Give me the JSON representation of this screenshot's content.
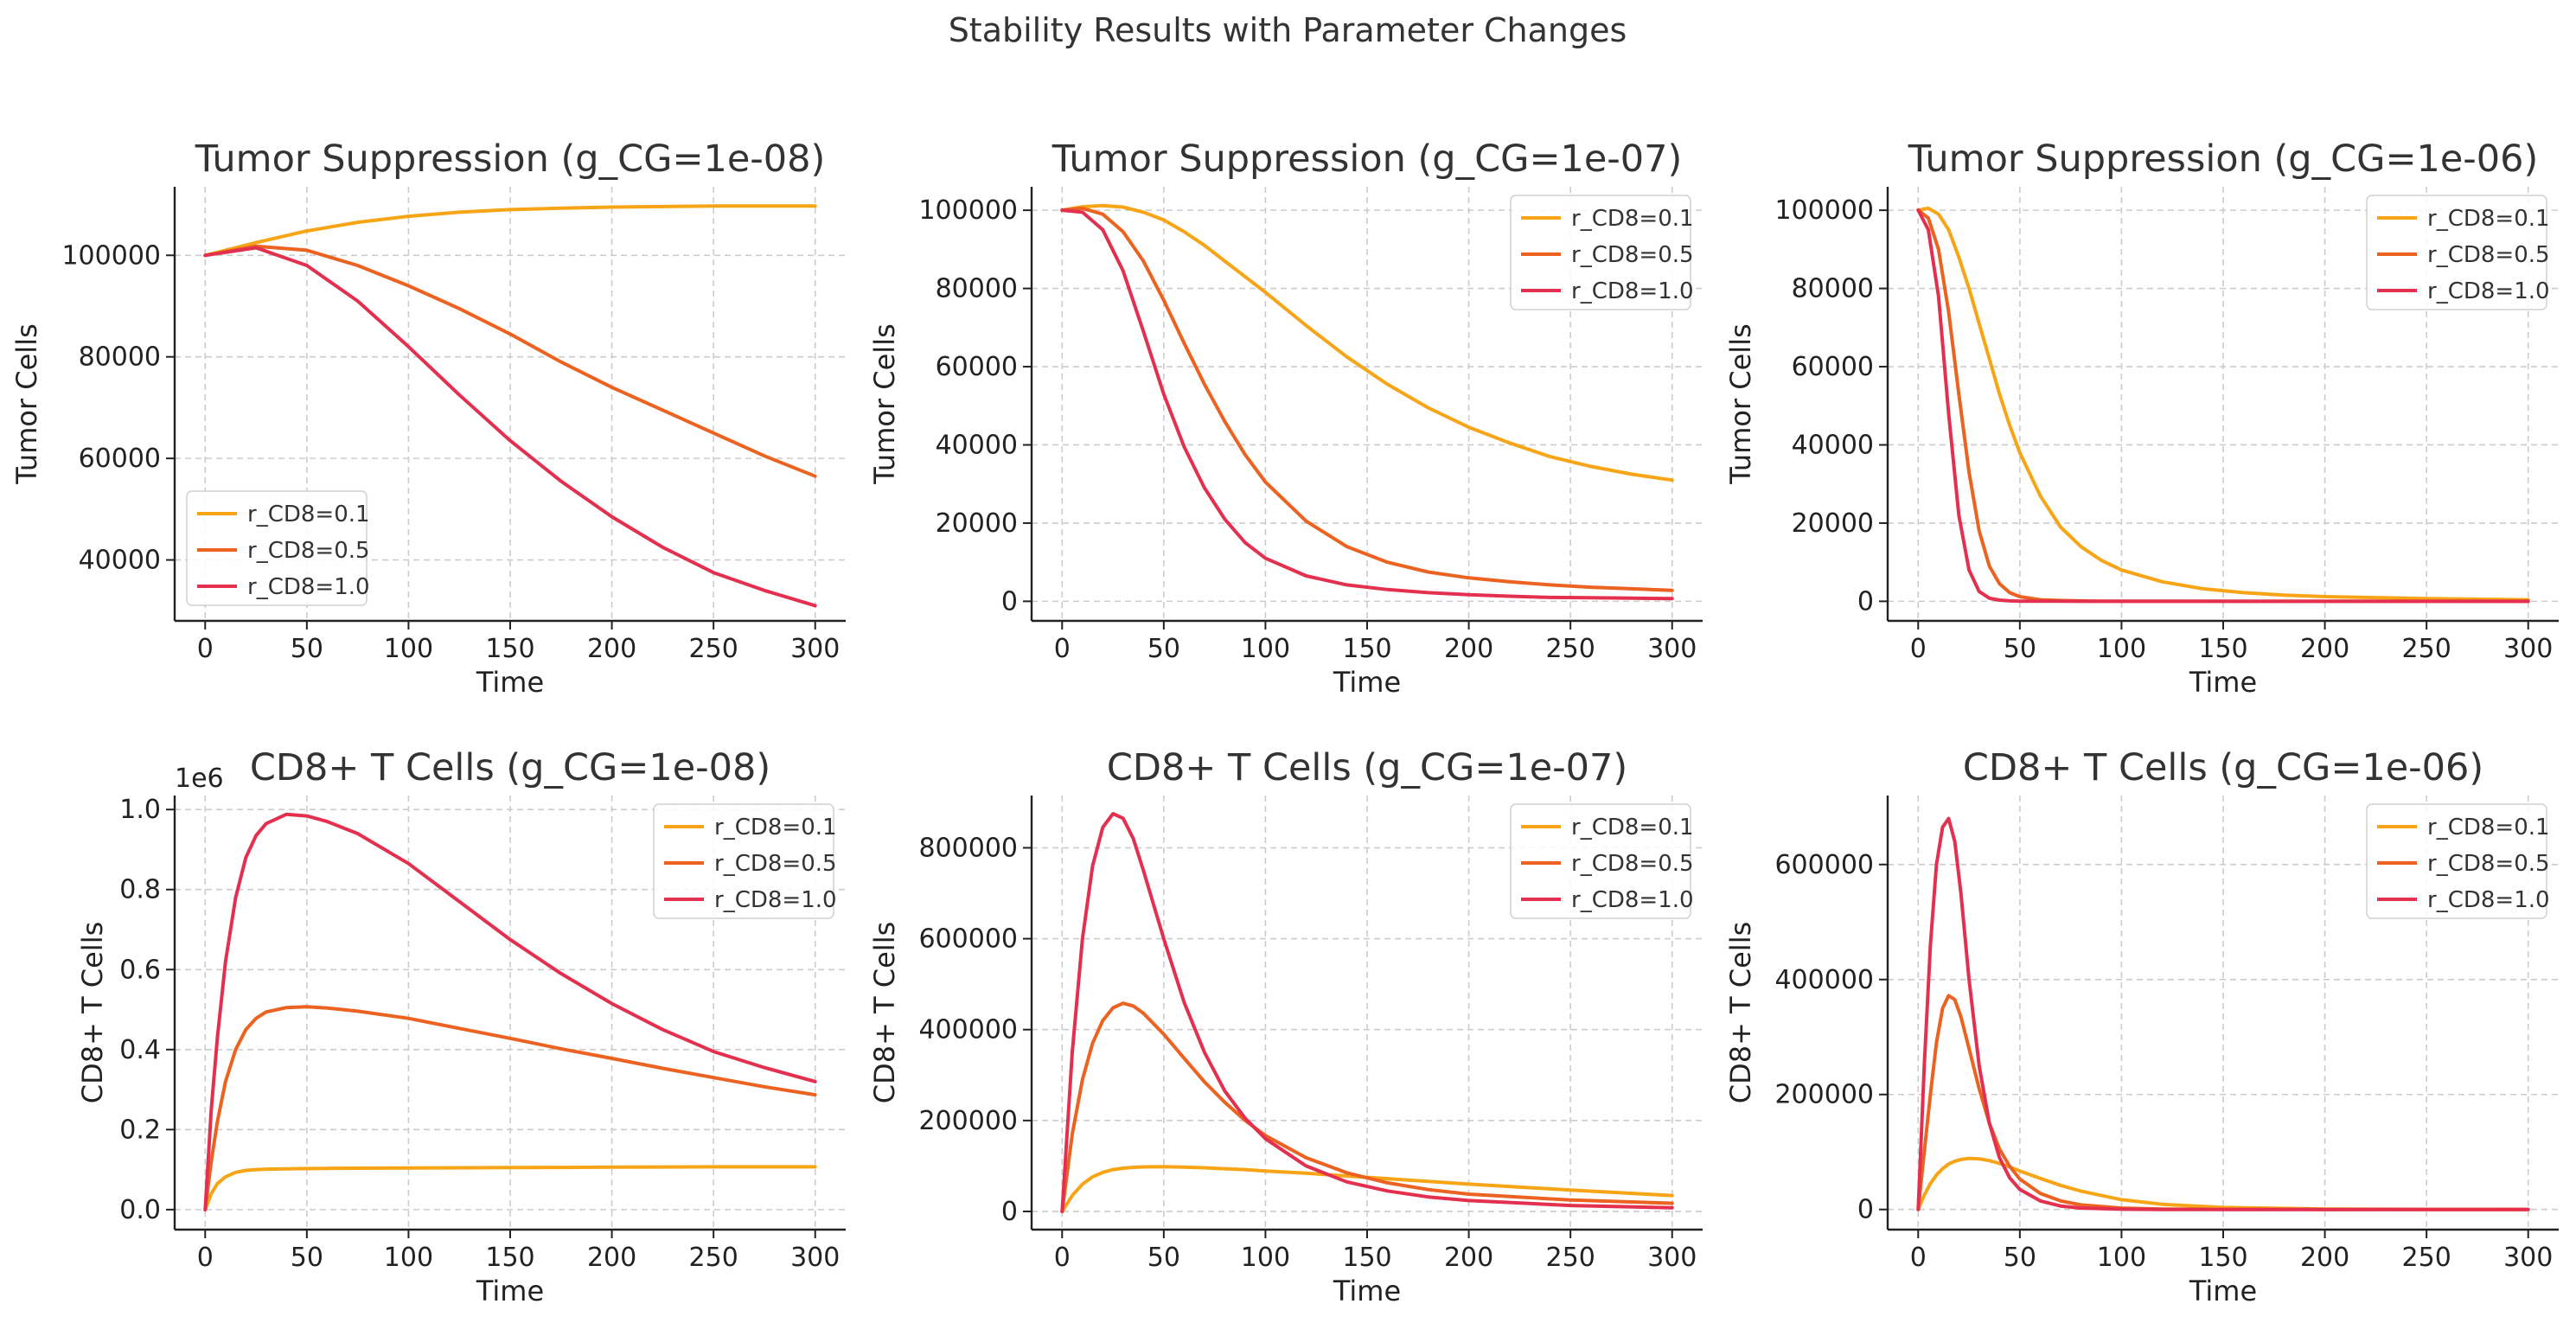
{
  "figure_title": "Stability Results with Parameter Changes",
  "colors": {
    "r_CD8=0.1": "#f7a516",
    "r_CD8=0.5": "#eb6221",
    "r_CD8=1.0": "#e4304f"
  },
  "chart_data": [
    {
      "type": "line",
      "title": "Tumor Suppression (g_CG=1e-08)",
      "xlabel": "Time",
      "ylabel": "Tumor Cells",
      "xlim": [
        -15,
        315
      ],
      "ylim": [
        28000,
        113500
      ],
      "xticks": [
        0,
        50,
        100,
        150,
        200,
        250,
        300
      ],
      "yticks": [
        40000,
        60000,
        80000,
        100000
      ],
      "ytick_labels": [
        "40000",
        "60000",
        "80000",
        "100000"
      ],
      "offset_label": "",
      "legend": "lower-left",
      "grid": true,
      "x": [
        0,
        25,
        50,
        75,
        100,
        125,
        150,
        175,
        200,
        225,
        250,
        275,
        300
      ],
      "series": [
        {
          "name": "r_CD8=0.1",
          "values": [
            100000,
            102500,
            104800,
            106500,
            107700,
            108500,
            109000,
            109300,
            109500,
            109600,
            109700,
            109700,
            109700
          ]
        },
        {
          "name": "r_CD8=0.5",
          "values": [
            100000,
            101800,
            101000,
            98000,
            94000,
            89500,
            84500,
            79000,
            74000,
            69500,
            65000,
            60500,
            56500
          ]
        },
        {
          "name": "r_CD8=1.0",
          "values": [
            100000,
            101500,
            98000,
            91000,
            82000,
            72500,
            63500,
            55500,
            48500,
            42500,
            37500,
            34000,
            31000
          ]
        }
      ]
    },
    {
      "type": "line",
      "title": "Tumor Suppression (g_CG=1e-07)",
      "xlabel": "Time",
      "ylabel": "Tumor Cells",
      "xlim": [
        -15,
        315
      ],
      "ylim": [
        -5000,
        106000
      ],
      "xticks": [
        0,
        50,
        100,
        150,
        200,
        250,
        300
      ],
      "yticks": [
        0,
        20000,
        40000,
        60000,
        80000,
        100000
      ],
      "ytick_labels": [
        "0",
        "20000",
        "40000",
        "60000",
        "80000",
        "100000"
      ],
      "offset_label": "",
      "legend": "upper-right",
      "grid": true,
      "x": [
        0,
        10,
        20,
        30,
        40,
        50,
        60,
        70,
        80,
        90,
        100,
        120,
        140,
        160,
        180,
        200,
        220,
        240,
        260,
        280,
        300
      ],
      "series": [
        {
          "name": "r_CD8=0.1",
          "values": [
            100000,
            100900,
            101200,
            100800,
            99500,
            97500,
            94500,
            91000,
            87000,
            83000,
            79000,
            70500,
            62500,
            55500,
            49500,
            44500,
            40500,
            37000,
            34500,
            32500,
            31000
          ]
        },
        {
          "name": "r_CD8=0.5",
          "values": [
            100000,
            100500,
            99000,
            94500,
            87000,
            77000,
            66000,
            55500,
            46000,
            37500,
            30500,
            20500,
            14000,
            10000,
            7500,
            6000,
            5000,
            4200,
            3600,
            3200,
            2800
          ]
        },
        {
          "name": "r_CD8=1.0",
          "values": [
            100000,
            99500,
            95000,
            84500,
            69000,
            53000,
            39500,
            29000,
            21000,
            15000,
            11000,
            6500,
            4200,
            3000,
            2200,
            1700,
            1300,
            1000,
            900,
            800,
            700
          ]
        }
      ]
    },
    {
      "type": "line",
      "title": "Tumor Suppression (g_CG=1e-06)",
      "xlabel": "Time",
      "ylabel": "Tumor Cells",
      "xlim": [
        -15,
        315
      ],
      "ylim": [
        -5000,
        106000
      ],
      "xticks": [
        0,
        50,
        100,
        150,
        200,
        250,
        300
      ],
      "yticks": [
        0,
        20000,
        40000,
        60000,
        80000,
        100000
      ],
      "ytick_labels": [
        "0",
        "20000",
        "40000",
        "60000",
        "80000",
        "100000"
      ],
      "offset_label": "",
      "legend": "upper-right",
      "grid": true,
      "x": [
        0,
        5,
        10,
        15,
        20,
        25,
        30,
        35,
        40,
        45,
        50,
        60,
        70,
        80,
        90,
        100,
        120,
        140,
        160,
        180,
        200,
        250,
        300
      ],
      "series": [
        {
          "name": "r_CD8=0.1",
          "values": [
            100000,
            100500,
            99000,
            95000,
            88000,
            80000,
            71000,
            62000,
            53000,
            45000,
            38000,
            27000,
            19000,
            14000,
            10500,
            8000,
            5000,
            3200,
            2200,
            1600,
            1200,
            700,
            400
          ]
        },
        {
          "name": "r_CD8=0.5",
          "values": [
            100000,
            98000,
            90000,
            74000,
            53000,
            33000,
            18000,
            9000,
            4500,
            2200,
            1200,
            400,
            200,
            100,
            50,
            30,
            20,
            10,
            0,
            0,
            0,
            0,
            0
          ]
        },
        {
          "name": "r_CD8=1.0",
          "values": [
            100000,
            95000,
            78000,
            48000,
            22000,
            8000,
            2500,
            800,
            300,
            100,
            50,
            20,
            10,
            0,
            0,
            0,
            0,
            0,
            0,
            0,
            0,
            0,
            0
          ]
        }
      ]
    },
    {
      "type": "line",
      "title": "CD8+ T Cells (g_CG=1e-08)",
      "xlabel": "Time",
      "ylabel": "CD8+ T Cells",
      "xlim": [
        -15,
        315
      ],
      "ylim": [
        -50000,
        1035000
      ],
      "xticks": [
        0,
        50,
        100,
        150,
        200,
        250,
        300
      ],
      "yticks": [
        0,
        200000,
        400000,
        600000,
        800000,
        1000000
      ],
      "ytick_labels": [
        "0.0",
        "0.2",
        "0.4",
        "0.6",
        "0.8",
        "1.0"
      ],
      "offset_label": "1e6",
      "legend": "upper-right",
      "grid": true,
      "x": [
        0,
        3,
        6,
        10,
        15,
        20,
        25,
        30,
        40,
        50,
        60,
        75,
        100,
        125,
        150,
        175,
        200,
        225,
        250,
        275,
        300
      ],
      "series": [
        {
          "name": "r_CD8=0.1",
          "values": [
            0,
            40000,
            65000,
            82000,
            93000,
            98000,
            100000,
            101000,
            102000,
            102500,
            103000,
            103500,
            104000,
            104500,
            105000,
            105500,
            106000,
            106500,
            107000,
            107000,
            107000
          ]
        },
        {
          "name": "r_CD8=0.5",
          "values": [
            0,
            120000,
            220000,
            320000,
            400000,
            450000,
            478000,
            494000,
            505000,
            507000,
            504000,
            496000,
            478000,
            453000,
            428000,
            402000,
            378000,
            353000,
            330000,
            307000,
            287000
          ]
        },
        {
          "name": "r_CD8=1.0",
          "values": [
            0,
            250000,
            430000,
            620000,
            780000,
            880000,
            935000,
            965000,
            988000,
            984000,
            970000,
            940000,
            865000,
            770000,
            675000,
            590000,
            515000,
            450000,
            395000,
            355000,
            320000
          ]
        }
      ]
    },
    {
      "type": "line",
      "title": "CD8+ T Cells (g_CG=1e-07)",
      "xlabel": "Time",
      "ylabel": "CD8+ T Cells",
      "xlim": [
        -15,
        315
      ],
      "ylim": [
        -40000,
        915000
      ],
      "xticks": [
        0,
        50,
        100,
        150,
        200,
        250,
        300
      ],
      "yticks": [
        0,
        200000,
        400000,
        600000,
        800000
      ],
      "ytick_labels": [
        "0",
        "200000",
        "400000",
        "600000",
        "800000"
      ],
      "offset_label": "",
      "legend": "upper-right",
      "grid": true,
      "x": [
        0,
        5,
        10,
        15,
        20,
        25,
        30,
        35,
        40,
        50,
        60,
        70,
        80,
        90,
        100,
        120,
        140,
        160,
        180,
        200,
        250,
        300
      ],
      "series": [
        {
          "name": "r_CD8=0.1",
          "values": [
            0,
            35000,
            60000,
            76000,
            86000,
            92000,
            95000,
            97000,
            98000,
            98500,
            97500,
            96000,
            94000,
            92000,
            89000,
            84000,
            78000,
            72000,
            66000,
            60000,
            47000,
            35000
          ]
        },
        {
          "name": "r_CD8=0.5",
          "values": [
            0,
            170000,
            290000,
            370000,
            420000,
            448000,
            458000,
            452000,
            436000,
            390000,
            337000,
            285000,
            240000,
            200000,
            167000,
            118000,
            85000,
            63000,
            48000,
            38000,
            25000,
            18000
          ]
        },
        {
          "name": "r_CD8=1.0",
          "values": [
            0,
            350000,
            600000,
            760000,
            845000,
            875000,
            865000,
            820000,
            750000,
            600000,
            460000,
            350000,
            265000,
            205000,
            160000,
            100000,
            65000,
            45000,
            32000,
            24000,
            13000,
            8000
          ]
        }
      ]
    },
    {
      "type": "line",
      "title": "CD8+ T Cells (g_CG=1e-06)",
      "xlabel": "Time",
      "ylabel": "CD8+ T Cells",
      "xlim": [
        -15,
        315
      ],
      "ylim": [
        -35000,
        720000
      ],
      "xticks": [
        0,
        50,
        100,
        150,
        200,
        250,
        300
      ],
      "yticks": [
        0,
        200000,
        400000,
        600000
      ],
      "ytick_labels": [
        "0",
        "200000",
        "400000",
        "600000"
      ],
      "offset_label": "",
      "legend": "upper-right",
      "grid": true,
      "x": [
        0,
        3,
        6,
        9,
        12,
        15,
        18,
        21,
        25,
        30,
        35,
        40,
        45,
        50,
        60,
        70,
        80,
        100,
        120,
        150,
        200,
        250,
        300
      ],
      "series": [
        {
          "name": "r_CD8=0.1",
          "values": [
            0,
            25000,
            45000,
            60000,
            71000,
            79000,
            84000,
            87000,
            89000,
            88000,
            85000,
            80000,
            74000,
            67000,
            54000,
            42000,
            32000,
            17000,
            9000,
            3500,
            800,
            200,
            50
          ]
        },
        {
          "name": "r_CD8=0.5",
          "values": [
            0,
            100000,
            200000,
            290000,
            350000,
            372000,
            365000,
            335000,
            280000,
            210000,
            150000,
            105000,
            75000,
            53000,
            28000,
            15000,
            8000,
            2500,
            800,
            200,
            0,
            0,
            0
          ]
        },
        {
          "name": "r_CD8=1.0",
          "values": [
            0,
            250000,
            460000,
            600000,
            665000,
            680000,
            640000,
            550000,
            400000,
            250000,
            150000,
            90000,
            55000,
            35000,
            15000,
            6000,
            2500,
            500,
            100,
            0,
            0,
            0,
            0
          ]
        }
      ]
    }
  ]
}
